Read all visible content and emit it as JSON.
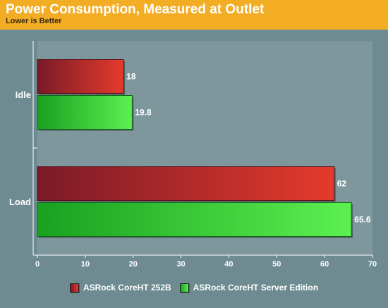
{
  "header": {
    "title": "Power Consumption, Measured at Outlet",
    "subtitle": "Lower is Better"
  },
  "colors": {
    "header_bg": "#f2ad24",
    "background": "#6e8b91",
    "plot_bg": "#7d979c",
    "series": [
      {
        "dark": "#7a1a28",
        "light": "#e53a2c"
      },
      {
        "dark": "#18a020",
        "light": "#5cf050"
      }
    ]
  },
  "chart_data": {
    "type": "bar",
    "orientation": "horizontal",
    "categories": [
      "Idle",
      "Load"
    ],
    "series": [
      {
        "name": "ASRock CoreHT 252B",
        "values": [
          18,
          62
        ]
      },
      {
        "name": "ASRock CoreHT Server Edition",
        "values": [
          19.8,
          65.6
        ]
      }
    ],
    "xlim": [
      0,
      70
    ],
    "xticks": [
      0,
      10,
      20,
      30,
      40,
      50,
      60,
      70
    ],
    "grid": false,
    "legend": "bottom"
  }
}
